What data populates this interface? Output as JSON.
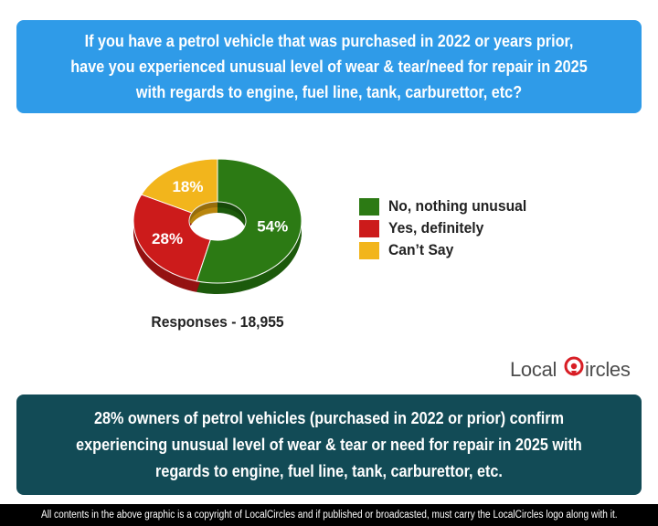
{
  "question": "If you have a petrol vehicle that was purchased in 2022 or years prior, have you experienced unusual level of wear & tear/need for repair in 2025 with regards to engine, fuel line, tank, carburettor, etc?",
  "chart_data": {
    "type": "pie",
    "donut": true,
    "categories": [
      "No, nothing unusual",
      "Yes, definitely",
      "Can’t Say"
    ],
    "values": [
      54,
      28,
      18
    ],
    "labels": [
      "54%",
      "28%",
      "18%"
    ],
    "colors": [
      "#2c7a14",
      "#cc1b1b",
      "#f2b51c"
    ],
    "dark_colors": [
      "#1d5a0c",
      "#941212",
      "#b9860f"
    ],
    "legend_placement": "right"
  },
  "responses_label": "Responses - 18,955",
  "logo": {
    "text_left": "Local",
    "text_right": "ircles",
    "accent_color": "#d81e25"
  },
  "finding": "28% owners of petrol vehicles (purchased in 2022 or prior) confirm experiencing unusual level of wear & tear or need for repair in 2025 with regards to engine, fuel line, tank, carburettor, etc.",
  "footer": "All contents in the above graphic is a copyright of LocalCircles and if published or broadcasted, must carry the LocalCircles logo along with it."
}
